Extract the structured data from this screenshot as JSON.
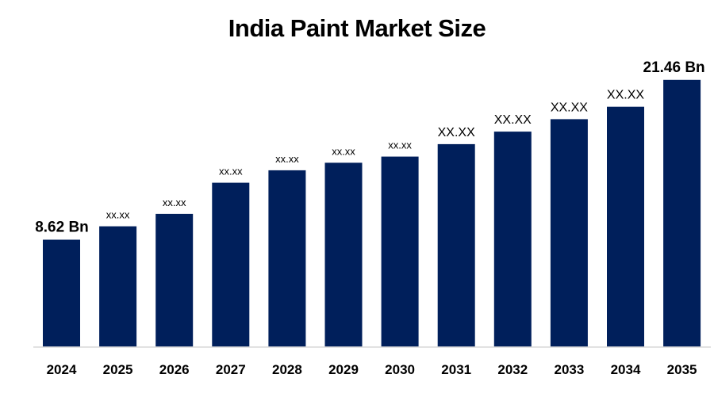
{
  "chart_data": {
    "type": "bar",
    "title": "India Paint Market Size",
    "xlabel": "",
    "ylabel": "",
    "categories": [
      "2024",
      "2025",
      "2026",
      "2027",
      "2028",
      "2029",
      "2030",
      "2031",
      "2032",
      "2033",
      "2034",
      "2035"
    ],
    "values": [
      8.62,
      9.7,
      10.7,
      13.2,
      14.2,
      14.8,
      15.3,
      16.3,
      17.3,
      18.3,
      19.3,
      21.46
    ],
    "value_labels": [
      "8.62 Bn",
      "xx.xx",
      "xx.xx",
      "xx.xx",
      "xx.xx",
      "xx.xx",
      "xx.xx",
      "XX.XX",
      "XX.XX",
      "XX.XX",
      "XX.XX",
      "21.46 Bn"
    ],
    "ylim": [
      0,
      22.4
    ],
    "grid": false,
    "legend": "none",
    "bar_color": "#001f5b",
    "axis_color": "#d9d9d9"
  }
}
